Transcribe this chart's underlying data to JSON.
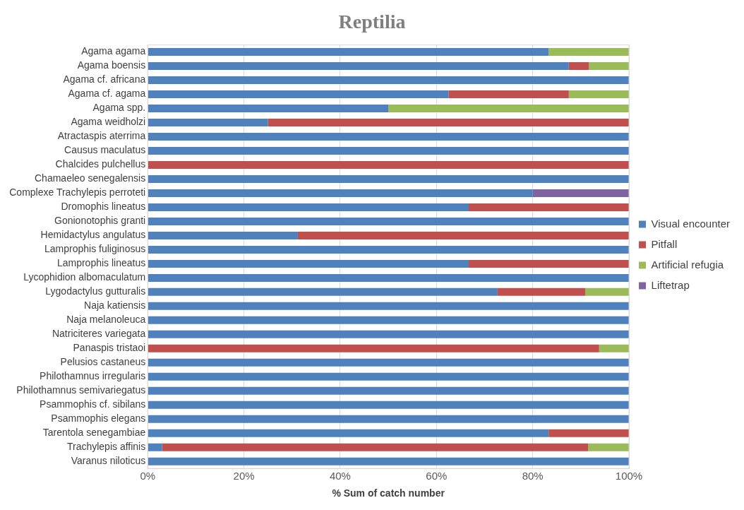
{
  "chart_data": {
    "type": "bar",
    "orientation": "horizontal",
    "stacked": true,
    "title": "Reptilia",
    "xlabel": "% Sum of catch number",
    "categories": [
      "Agama agama",
      "Agama boensis",
      "Agama cf. africana",
      "Agama cf. agama",
      "Agama spp.",
      "Agama weidholzi",
      "Atractaspis aterrima",
      "Causus maculatus",
      "Chalcides pulchellus",
      "Chamaeleo senegalensis",
      "Complexe Trachylepis perroteti",
      "Dromophis lineatus",
      "Gonionotophis granti",
      "Hemidactylus angulatus",
      "Lamprophis fuliginosus",
      "Lamprophis lineatus",
      "Lycophidion albomaculatum",
      "Lygodactylus gutturalis",
      "Naja katiensis",
      "Naja melanoleuca",
      "Natriciteres variegata",
      "Panaspis tristaoi",
      "Pelusios castaneus",
      "Philothamnus irregularis",
      "Philothamnus semivariegatus",
      "Psammophis cf. sibilans",
      "Psammophis elegans",
      "Tarentola senegambiae",
      "Trachylepis affinis",
      "Varanus niloticus"
    ],
    "series": [
      {
        "name": "Visual encounter",
        "color": "#4f81bd",
        "values": [
          83.3,
          87.5,
          100,
          62.5,
          50,
          25,
          100,
          100,
          0,
          100,
          80,
          66.7,
          100,
          31.2,
          100,
          66.7,
          100,
          72.7,
          100,
          100,
          100,
          0,
          100,
          100,
          100,
          100,
          100,
          83.3,
          3,
          100
        ]
      },
      {
        "name": "Pitfall",
        "color": "#c0504d",
        "values": [
          0,
          4.2,
          0,
          25,
          0,
          75,
          0,
          0,
          100,
          0,
          0,
          33.3,
          0,
          68.8,
          0,
          33.3,
          0,
          18.2,
          0,
          0,
          0,
          93.8,
          0,
          0,
          0,
          0,
          0,
          16.7,
          88.5,
          0
        ]
      },
      {
        "name": "Artificial refugia",
        "color": "#9bbb59",
        "values": [
          16.7,
          8.3,
          0,
          12.5,
          50,
          0,
          0,
          0,
          0,
          0,
          0,
          0,
          0,
          0,
          0,
          0,
          0,
          9.1,
          0,
          0,
          0,
          6.2,
          0,
          0,
          0,
          0,
          0,
          0,
          8.5,
          0
        ]
      },
      {
        "name": "Liftetrap",
        "color": "#8064a2",
        "values": [
          0,
          0,
          0,
          0,
          0,
          0,
          0,
          0,
          0,
          0,
          20,
          0,
          0,
          0,
          0,
          0,
          0,
          0,
          0,
          0,
          0,
          0,
          0,
          0,
          0,
          0,
          0,
          0,
          0,
          0
        ]
      }
    ],
    "xlim": [
      0,
      100
    ],
    "xticks": [
      {
        "value": 0,
        "label": "0%"
      },
      {
        "value": 20,
        "label": "20%"
      },
      {
        "value": 40,
        "label": "40%"
      },
      {
        "value": 60,
        "label": "60%"
      },
      {
        "value": 80,
        "label": "80%"
      },
      {
        "value": 100,
        "label": "100%"
      }
    ],
    "grid": "x",
    "legend": "right"
  }
}
